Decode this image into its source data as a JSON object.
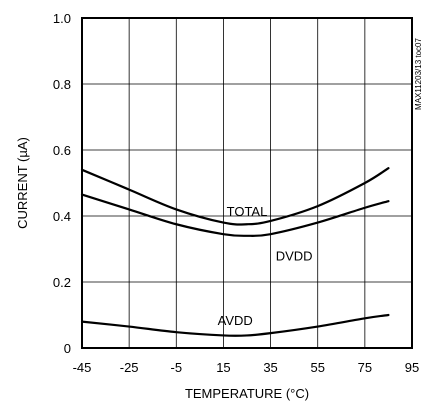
{
  "chart_data": {
    "type": "line",
    "xlabel": "TEMPERATURE (°C)",
    "ylabel": "CURRENT (µA)",
    "xlim": [
      -45,
      95
    ],
    "ylim": [
      0,
      1.0
    ],
    "xticks": [
      -45,
      -25,
      -5,
      15,
      35,
      55,
      75,
      95
    ],
    "xtick_labels": [
      "-45",
      "-25",
      "-5",
      "15",
      "35",
      "55",
      "75",
      "95"
    ],
    "yticks": [
      0,
      0.2,
      0.4,
      0.6,
      0.8,
      1.0
    ],
    "ytick_labels": [
      "0",
      "0.2",
      "0.4",
      "0.6",
      "0.8",
      "1.0"
    ],
    "grid": true,
    "legend": "none",
    "side_label": "MAX11203/13 toc07",
    "x": [
      -45,
      -25,
      -5,
      15,
      25,
      35,
      55,
      75,
      85
    ],
    "series": [
      {
        "name": "TOTAL",
        "values": [
          0.54,
          0.48,
          0.42,
          0.38,
          0.375,
          0.385,
          0.43,
          0.5,
          0.545
        ]
      },
      {
        "name": "DVDD",
        "values": [
          0.465,
          0.42,
          0.375,
          0.345,
          0.34,
          0.345,
          0.38,
          0.425,
          0.445
        ]
      },
      {
        "name": "AVDD",
        "values": [
          0.08,
          0.065,
          0.048,
          0.038,
          0.038,
          0.045,
          0.065,
          0.09,
          0.1
        ]
      }
    ],
    "annotations": [
      {
        "text": "TOTAL",
        "x": 25,
        "y": 0.415
      },
      {
        "text": "DVDD",
        "x": 45,
        "y": 0.28
      },
      {
        "text": "AVDD",
        "x": 20,
        "y": 0.085
      }
    ]
  }
}
